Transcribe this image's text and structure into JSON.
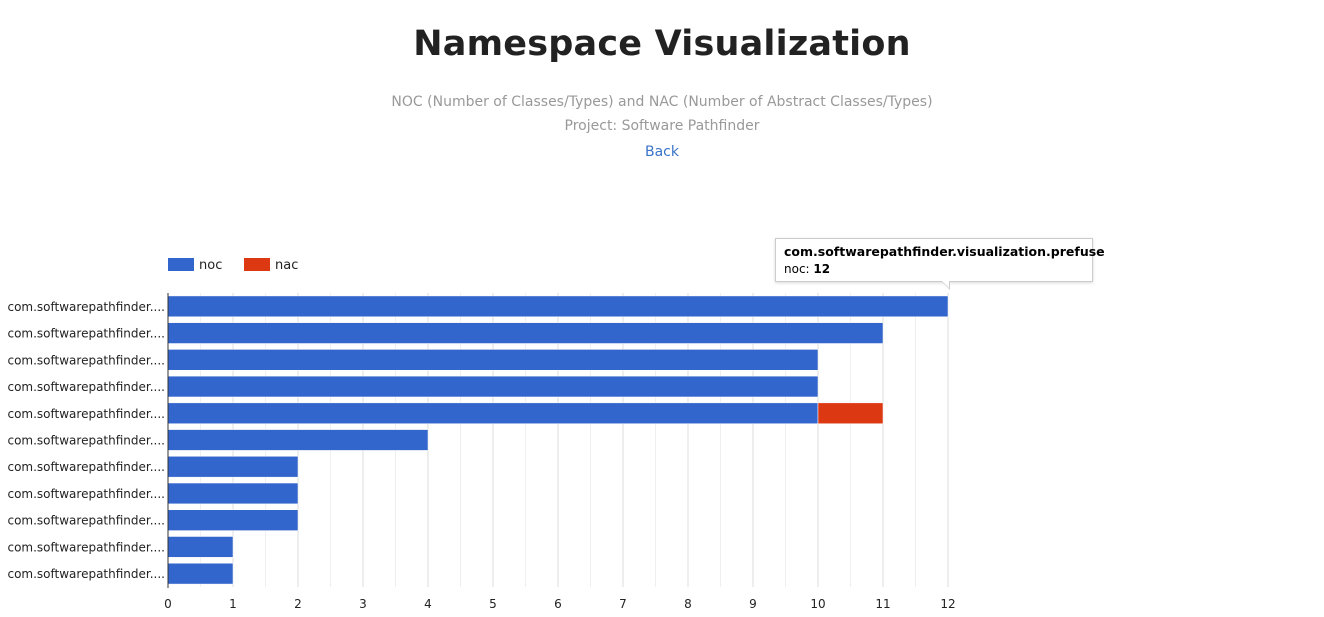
{
  "page": {
    "title": "Namespace Visualization",
    "subtitle_line1": "NOC (Number of Classes/Types) and NAC (Number of Abstract Classes/Types)",
    "subtitle_line2": "Project: Software Pathfinder",
    "back_label": "Back"
  },
  "tooltip": {
    "title": "com.softwarepathfinder.visualization.prefuse",
    "series_label": "noc:",
    "value": "12"
  },
  "colors": {
    "noc": "#3366cc",
    "nac": "#dc3912",
    "grid": "#e6e6e6",
    "axis": "#333333",
    "text": "#222222"
  },
  "chart_data": {
    "type": "bar",
    "orientation": "horizontal",
    "stacked": true,
    "title": "",
    "xlabel": "",
    "ylabel": "",
    "xlim": [
      0,
      12
    ],
    "x_ticks": [
      "0",
      "1",
      "2",
      "3",
      "4",
      "5",
      "6",
      "7",
      "8",
      "9",
      "10",
      "11",
      "12"
    ],
    "grid": true,
    "legend_position": "top-left",
    "categories": [
      "com.softwarepathfinder....",
      "com.softwarepathfinder....",
      "com.softwarepathfinder....",
      "com.softwarepathfinder....",
      "com.softwarepathfinder....",
      "com.softwarepathfinder....",
      "com.softwarepathfinder....",
      "com.softwarepathfinder....",
      "com.softwarepathfinder....",
      "com.softwarepathfinder....",
      "com.softwarepathfinder...."
    ],
    "series": [
      {
        "name": "noc",
        "values": [
          12,
          11,
          10,
          10,
          10,
          4,
          2,
          2,
          2,
          1,
          1
        ]
      },
      {
        "name": "nac",
        "values": [
          0,
          0,
          0,
          0,
          1,
          0,
          0,
          0,
          0,
          0,
          0
        ]
      }
    ]
  }
}
